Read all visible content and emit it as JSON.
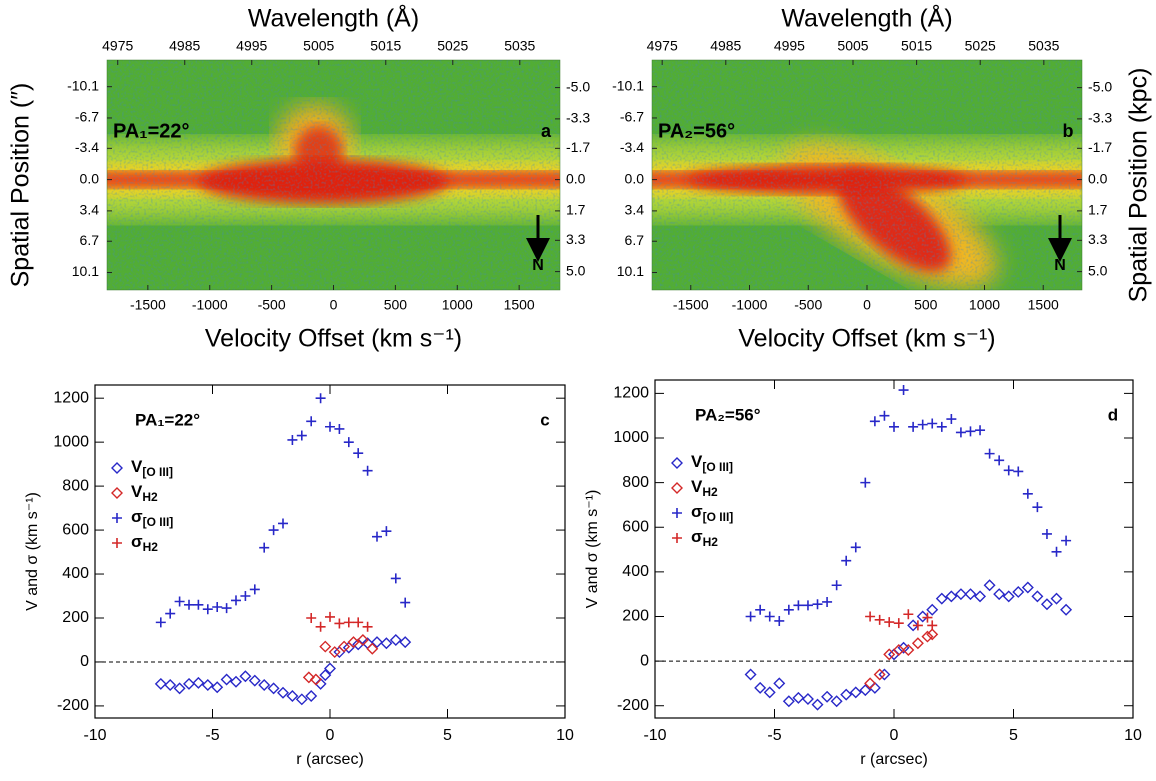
{
  "chart_data": [
    {
      "type": "image",
      "x_label": "Velocity Offset (km s⁻¹)",
      "x2_label": "Wavelength (Å)",
      "y_label": "Spatial Position (″)",
      "xlim": [
        -1830,
        1830
      ],
      "xticks": [
        -1500,
        -1000,
        -500,
        0,
        500,
        1000,
        1500
      ],
      "x2lim": [
        4973.4,
        5041
      ],
      "x2ticks": [
        4975,
        4985,
        4995,
        5005,
        5015,
        5025,
        5035
      ],
      "ylim": [
        -13,
        12
      ],
      "y_reversed": true,
      "yticks": [
        -10.1,
        -6.7,
        -3.4,
        {
          "value": 0,
          "label": "0.0"
        },
        3.4,
        6.7,
        10.1
      ],
      "y2lim": [
        -6.5,
        6.0
      ],
      "y2ticks": [
        {
          "value": -5,
          "label": "-5.0"
        },
        -3.3,
        -1.7,
        {
          "value": 0,
          "label": "0.0"
        },
        1.7,
        3.3,
        {
          "value": 5,
          "label": "5.0"
        }
      ],
      "annotations": [
        "PA₁=22°",
        "a",
        "N"
      ]
    },
    {
      "type": "image",
      "x_label": "Velocity Offset (km s⁻¹)",
      "x2_label": "Wavelength (Å)",
      "y2_label": "Spatial Position (kpc)",
      "xlim": [
        -1830,
        1830
      ],
      "xticks": [
        -1500,
        -1000,
        -500,
        0,
        500,
        1000,
        1500
      ],
      "x2lim": [
        4973.4,
        5041
      ],
      "x2ticks": [
        4975,
        4985,
        4995,
        5005,
        5015,
        5025,
        5035
      ],
      "ylim": [
        -13,
        12
      ],
      "y_reversed": true,
      "yticks": [
        -10.1,
        -6.7,
        -3.4,
        {
          "value": 0,
          "label": "0.0"
        },
        3.4,
        6.7,
        10.1
      ],
      "y2lim": [
        -6.5,
        6.0
      ],
      "y2ticks": [
        {
          "value": -5,
          "label": "-5.0"
        },
        -3.3,
        -1.7,
        {
          "value": 0,
          "label": "0.0"
        },
        1.7,
        3.3,
        {
          "value": 5,
          "label": "5.0"
        }
      ],
      "annotations": [
        "PA₂=56°",
        "b",
        "N"
      ]
    },
    {
      "type": "scatter",
      "x_label": "r (arcsec)",
      "y_label": "V and σ (km s⁻¹)",
      "xlim": [
        -10,
        10
      ],
      "xticks": [
        -10,
        -5,
        0,
        5,
        10
      ],
      "ylim": [
        -255,
        1260
      ],
      "yticks": [
        -200,
        0,
        200,
        400,
        600,
        800,
        1000,
        1200
      ],
      "reference_line": 0,
      "annotations": [
        "PA₁=22°",
        "c"
      ],
      "series": [
        {
          "name": "V[O III]",
          "color": "#2828c8",
          "marker": "diamond",
          "x": [
            -7.2,
            -6.8,
            -6.4,
            -6.0,
            -5.6,
            -5.2,
            -4.8,
            -4.4,
            -4.0,
            -3.6,
            -3.2,
            -2.8,
            -2.4,
            -2.0,
            -1.6,
            -1.2,
            -0.8,
            -0.4,
            -0.2,
            0.0,
            0.4,
            0.8,
            1.2,
            1.6,
            2.0,
            2.4,
            2.8,
            3.2
          ],
          "values": [
            -100,
            -105,
            -120,
            -100,
            -95,
            -105,
            -115,
            -80,
            -90,
            -65,
            -85,
            -105,
            -120,
            -140,
            -155,
            -170,
            -155,
            -100,
            -60,
            -30,
            45,
            65,
            80,
            85,
            90,
            85,
            100,
            90
          ]
        },
        {
          "name": "VH2",
          "color": "#d42828",
          "marker": "diamond",
          "x": [
            -0.9,
            -0.6,
            -0.2,
            0.2,
            0.6,
            1.0,
            1.4,
            1.8
          ],
          "values": [
            -70,
            -80,
            70,
            45,
            70,
            90,
            100,
            60
          ]
        },
        {
          "name": "σ[O III]",
          "color": "#2828c8",
          "marker": "plus",
          "x": [
            -7.2,
            -6.8,
            -6.4,
            -6.0,
            -5.6,
            -5.2,
            -4.8,
            -4.4,
            -4.0,
            -3.6,
            -3.2,
            -2.8,
            -2.4,
            -2.0,
            -1.6,
            -1.2,
            -0.8,
            -0.4,
            0.0,
            0.4,
            0.8,
            1.2,
            1.6,
            2.0,
            2.4,
            2.8,
            3.2
          ],
          "values": [
            180,
            220,
            275,
            260,
            260,
            240,
            250,
            245,
            280,
            300,
            330,
            520,
            600,
            630,
            1010,
            1030,
            1095,
            1200,
            1070,
            1060,
            1000,
            950,
            870,
            570,
            595,
            380,
            270
          ]
        },
        {
          "name": "σH2",
          "color": "#d42828",
          "marker": "plus",
          "x": [
            -0.8,
            -0.4,
            0.0,
            0.4,
            0.8,
            1.2,
            1.6
          ],
          "values": [
            200,
            160,
            205,
            175,
            180,
            180,
            160
          ]
        }
      ]
    },
    {
      "type": "scatter",
      "x_label": "r (arcsec)",
      "y_label": "V and σ (km s⁻¹)",
      "xlim": [
        -10,
        10
      ],
      "xticks": [
        -10,
        -5,
        0,
        5,
        10
      ],
      "ylim": [
        -255,
        1260
      ],
      "yticks": [
        -200,
        0,
        200,
        400,
        600,
        800,
        1000,
        1200
      ],
      "reference_line": 0,
      "annotations": [
        "PA₂=56°",
        "d"
      ],
      "series": [
        {
          "name": "V[O III]",
          "color": "#2828c8",
          "marker": "diamond",
          "x": [
            -6.0,
            -5.6,
            -5.2,
            -4.8,
            -4.4,
            -4.0,
            -3.6,
            -3.2,
            -2.8,
            -2.4,
            -2.0,
            -1.6,
            -1.2,
            -0.8,
            -0.4,
            0.0,
            0.4,
            0.8,
            1.2,
            1.6,
            2.0,
            2.4,
            2.8,
            3.2,
            3.6,
            4.0,
            4.4,
            4.8,
            5.2,
            5.6,
            6.0,
            6.4,
            6.8,
            7.2
          ],
          "values": [
            -60,
            -120,
            -140,
            -100,
            -180,
            -165,
            -170,
            -195,
            -160,
            -180,
            -150,
            -140,
            -130,
            -120,
            -60,
            30,
            60,
            160,
            200,
            230,
            280,
            290,
            300,
            300,
            290,
            340,
            300,
            290,
            310,
            330,
            290,
            255,
            280,
            230
          ]
        },
        {
          "name": "VH2",
          "color": "#d42828",
          "marker": "diamond",
          "x": [
            -1.0,
            -0.6,
            -0.2,
            0.2,
            0.6,
            1.0,
            1.4,
            1.6
          ],
          "values": [
            -100,
            -60,
            30,
            50,
            50,
            80,
            110,
            120
          ]
        },
        {
          "name": "σ[O III]",
          "color": "#2828c8",
          "marker": "plus",
          "x": [
            -6.0,
            -5.6,
            -5.2,
            -4.8,
            -4.4,
            -4.0,
            -3.6,
            -3.2,
            -2.8,
            -2.4,
            -2.0,
            -1.6,
            -1.2,
            -0.8,
            -0.4,
            0.0,
            0.4,
            0.8,
            1.2,
            1.6,
            2.0,
            2.4,
            2.8,
            3.2,
            3.6,
            4.0,
            4.4,
            4.8,
            5.2,
            5.6,
            6.0,
            6.4,
            6.8,
            7.2
          ],
          "values": [
            200,
            230,
            200,
            180,
            230,
            250,
            250,
            255,
            265,
            340,
            450,
            510,
            800,
            1075,
            1100,
            1050,
            1215,
            1050,
            1060,
            1065,
            1050,
            1085,
            1025,
            1030,
            1035,
            930,
            900,
            855,
            850,
            750,
            690,
            570,
            490,
            540
          ]
        },
        {
          "name": "σH2",
          "color": "#d42828",
          "marker": "plus",
          "x": [
            -1.0,
            -0.6,
            -0.2,
            0.2,
            0.6,
            1.0,
            1.4,
            1.6
          ],
          "values": [
            200,
            185,
            175,
            170,
            210,
            160,
            195,
            160
          ]
        }
      ]
    }
  ]
}
